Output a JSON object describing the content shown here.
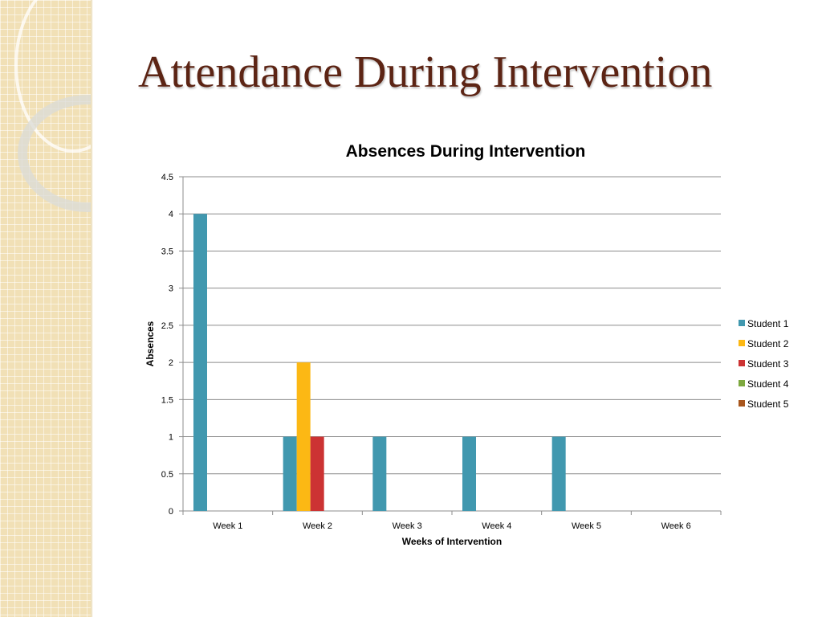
{
  "slide": {
    "title": "Attendance During Intervention"
  },
  "theme": {
    "title_color": "#5c2414",
    "band_color": "#f1e0b6"
  },
  "chart_data": {
    "type": "bar",
    "title": "Absences During Intervention",
    "xlabel": "Weeks of Intervention",
    "ylabel": "Absences",
    "categories": [
      "Week 1",
      "Week 2",
      "Week 3",
      "Week 4",
      "Week 5",
      "Week 6"
    ],
    "ylim": [
      0,
      4.5
    ],
    "yticks": [
      "0",
      "0.5",
      "1",
      "1.5",
      "2",
      "2.5",
      "3",
      "3.5",
      "4",
      "4.5"
    ],
    "grid": true,
    "legend_position": "right",
    "series": [
      {
        "name": "Student 1",
        "color": "#4198af",
        "values": [
          4,
          1,
          1,
          1,
          1,
          0
        ]
      },
      {
        "name": "Student 2",
        "color": "#fcb814",
        "values": [
          0,
          2,
          0,
          0,
          0,
          0
        ]
      },
      {
        "name": "Student 3",
        "color": "#cc3333",
        "values": [
          0,
          1,
          0,
          0,
          0,
          0
        ]
      },
      {
        "name": "Student 4",
        "color": "#7da83f",
        "values": [
          0,
          0,
          0,
          0,
          0,
          0
        ]
      },
      {
        "name": "Student 5",
        "color": "#a8561d",
        "values": [
          0,
          0,
          0,
          0,
          0,
          0
        ]
      }
    ]
  }
}
